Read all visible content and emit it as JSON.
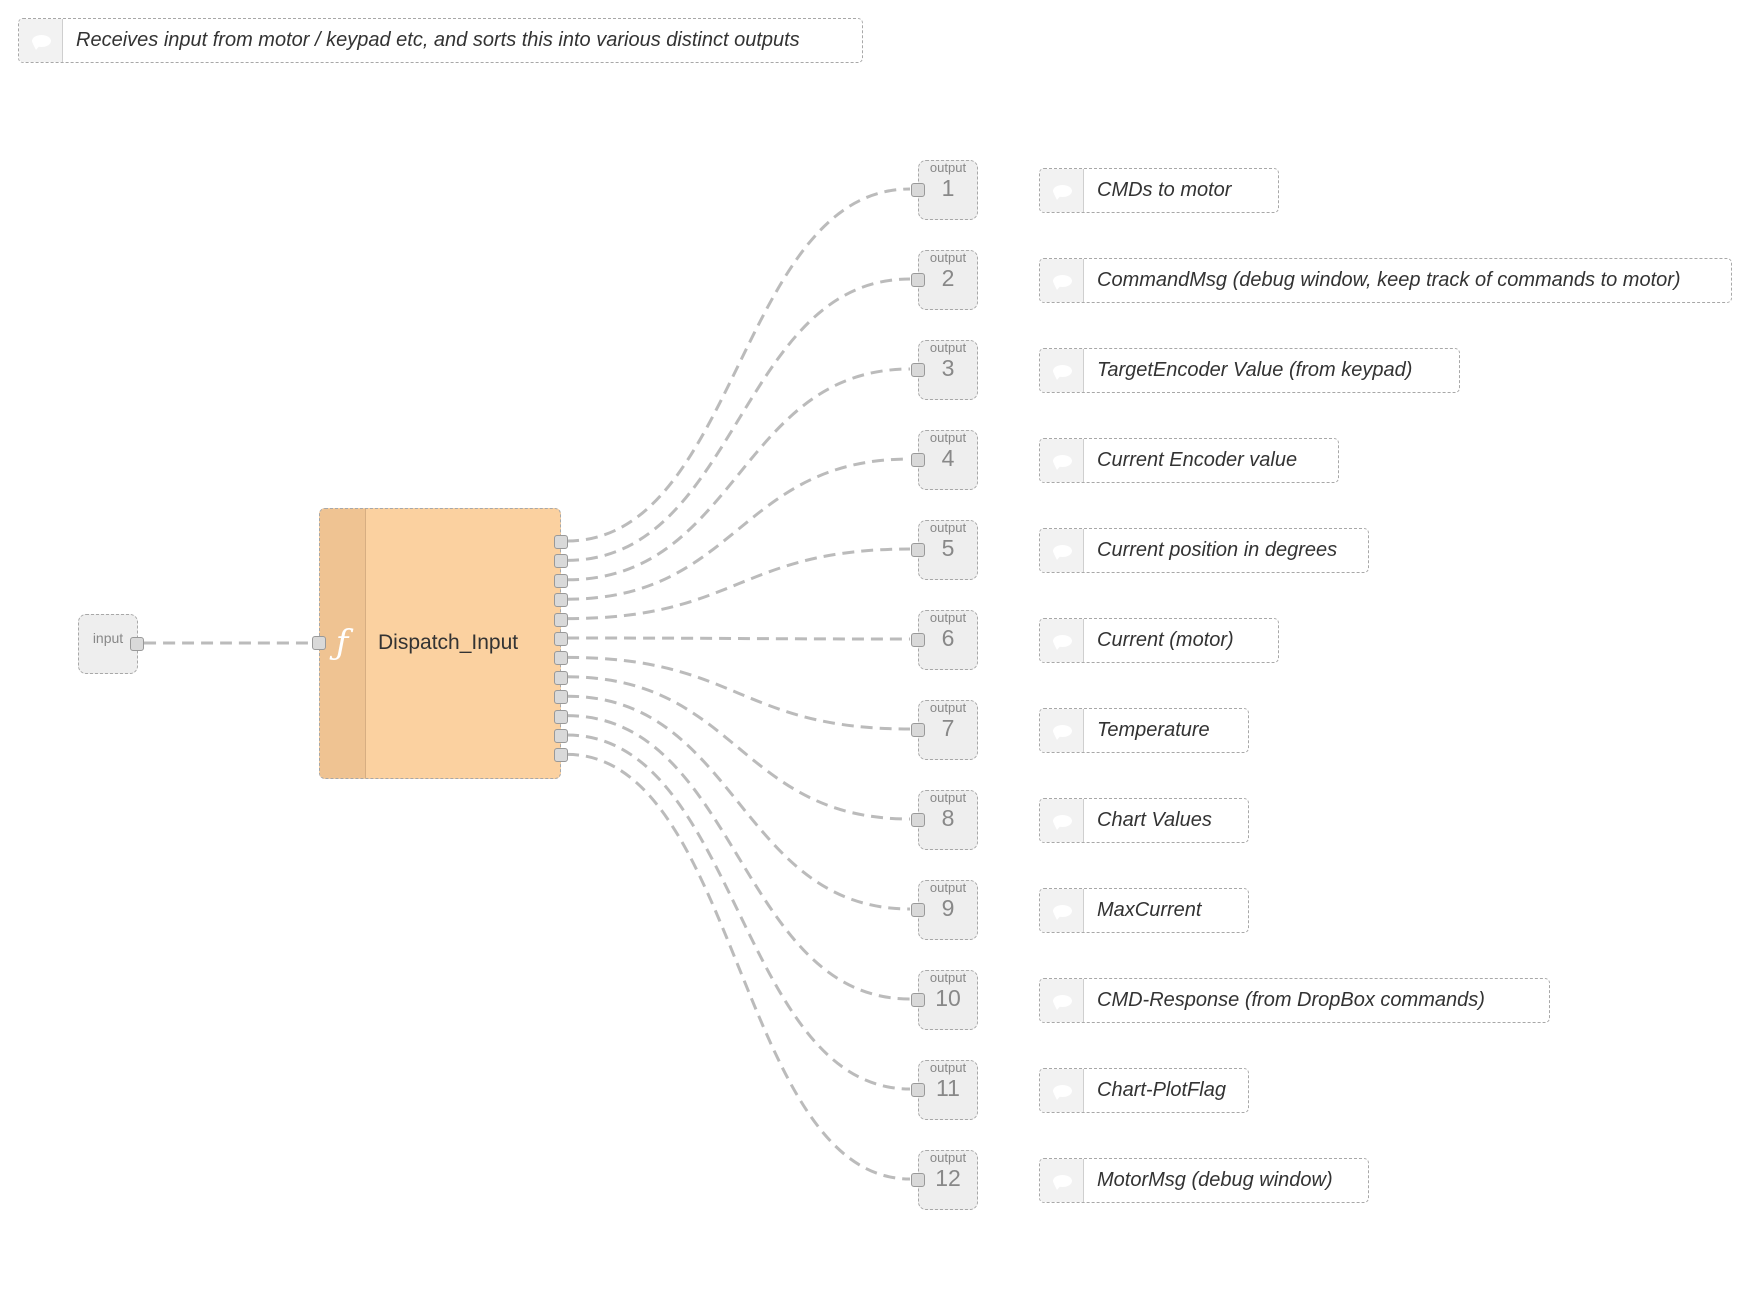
{
  "header_comment": {
    "text": "Receives input from motor / keypad etc, and sorts this into various distinct outputs",
    "icon": "comment-icon"
  },
  "input_node": {
    "label": "input"
  },
  "function_node": {
    "name": "Dispatch_Input",
    "icon": "function-icon",
    "color": "#fbd1a0",
    "output_count": 12
  },
  "outputs": [
    {
      "label": "output",
      "number": "1",
      "comment": "CMDs to motor"
    },
    {
      "label": "output",
      "number": "2",
      "comment": "CommandMsg (debug window, keep track of commands to motor)"
    },
    {
      "label": "output",
      "number": "3",
      "comment": "TargetEncoder Value (from keypad)"
    },
    {
      "label": "output",
      "number": "4",
      "comment": "Current Encoder value"
    },
    {
      "label": "output",
      "number": "5",
      "comment": "Current position in degrees"
    },
    {
      "label": "output",
      "number": "6",
      "comment": "Current (motor)"
    },
    {
      "label": "output",
      "number": "7",
      "comment": "Temperature"
    },
    {
      "label": "output",
      "number": "8",
      "comment": "Chart Values"
    },
    {
      "label": "output",
      "number": "9",
      "comment": "MaxCurrent"
    },
    {
      "label": "output",
      "number": "10",
      "comment": "CMD-Response (from DropBox commands)"
    },
    {
      "label": "output",
      "number": "11",
      "comment": "Chart-PlotFlag"
    },
    {
      "label": "output",
      "number": "12",
      "comment": "MotorMsg (debug window)"
    }
  ],
  "colors": {
    "wire": "#bbbbbb",
    "node_border": "#a8a8a8",
    "port_node_fill": "#eeeeee"
  }
}
